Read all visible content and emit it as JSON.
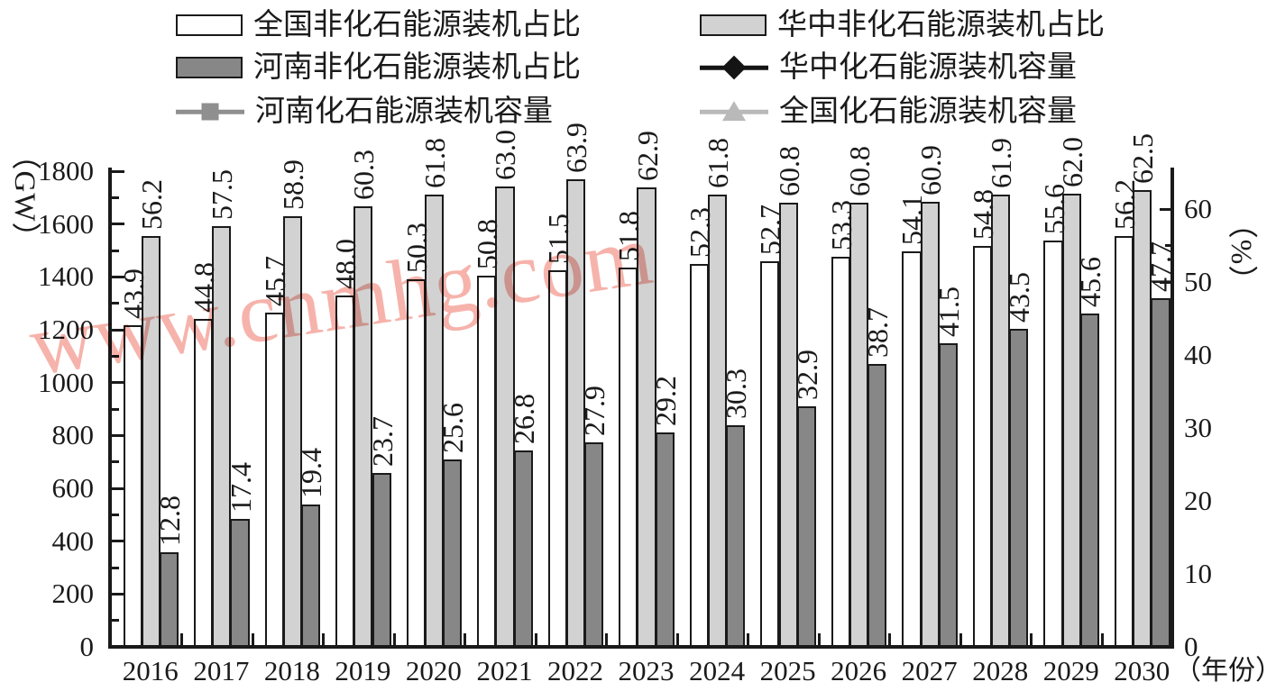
{
  "legend": {
    "items": [
      {
        "label": "全国非化石能源装机占比",
        "marker": "rect",
        "color": "#ffffff"
      },
      {
        "label": "华中非化石能源装机占比",
        "marker": "rect",
        "color": "#d2d2d2"
      },
      {
        "label": "河南非化石能源装机占比",
        "marker": "rect",
        "color": "#878787"
      },
      {
        "label": "华中化石能源装机容量",
        "marker": "line-diamond",
        "color": "#141414"
      },
      {
        "label": "河南化石能源装机容量",
        "marker": "line-square",
        "color": "#8f8f8f"
      },
      {
        "label": "全国化石能源装机容量",
        "marker": "line-triangle",
        "color": "#b9b9b9"
      }
    ]
  },
  "axes": {
    "left_unit": "（GW）",
    "right_unit": "（%）",
    "x_unit": "（年份）",
    "gw_ticks": [
      "0",
      "200",
      "400",
      "600",
      "800",
      "1000",
      "1200",
      "1400",
      "1600",
      "1800"
    ],
    "pct_ticks": [
      "0",
      "10",
      "20",
      "30",
      "40",
      "50",
      "60"
    ]
  },
  "watermark": {
    "text": "www.cnmhg.com",
    "color": "#f5a69c"
  },
  "chart_data": {
    "type": "bar",
    "categories": [
      "2016",
      "2017",
      "2018",
      "2019",
      "2020",
      "2021",
      "2022",
      "2023",
      "2024",
      "2025",
      "2026",
      "2027",
      "2028",
      "2029",
      "2030"
    ],
    "series": [
      {
        "name": "全国非化石能源装机占比",
        "color": "#ffffff",
        "axis": "right(%)",
        "labels": [
          "43.9",
          "44.8",
          "45.7",
          "48.0",
          "50.3",
          "50.8",
          "51.5",
          "51.8",
          "52.3",
          "52.7",
          "53.3",
          "54.1",
          "54.8",
          "55.6",
          "56.2"
        ]
      },
      {
        "name": "华中非化石能源装机占比",
        "color": "#d2d2d2",
        "axis": "right(%)",
        "labels": [
          "56.2",
          "57.5",
          "58.9",
          "60.3",
          "61.8",
          "63.0",
          "63.9",
          "62.9",
          "61.8",
          "60.8",
          "60.8",
          "60.9",
          "61.9",
          "62.0",
          "62.5"
        ]
      },
      {
        "name": "河南非化石能源装机占比",
        "color": "#878787",
        "axis": "right(%)",
        "labels": [
          "12.8",
          "17.4",
          "19.4",
          "23.7",
          "25.6",
          "26.8",
          "27.9",
          "29.2",
          "30.3",
          "32.9",
          "38.7",
          "41.5",
          "43.5",
          "45.6",
          "47.7"
        ]
      }
    ],
    "legend_only_line_series": [
      "华中化石能源装机容量",
      "河南化石能源装机容量",
      "全国化石能源装机容量"
    ],
    "left_axis": {
      "label": "(GW)",
      "range": [
        0,
        1800
      ],
      "tick_step": 200
    },
    "right_axis": {
      "label": "(%)",
      "range": [
        0,
        60
      ],
      "tick_step": 10
    },
    "xlabel": "(年份)",
    "grid": false,
    "legend_position": "top"
  }
}
